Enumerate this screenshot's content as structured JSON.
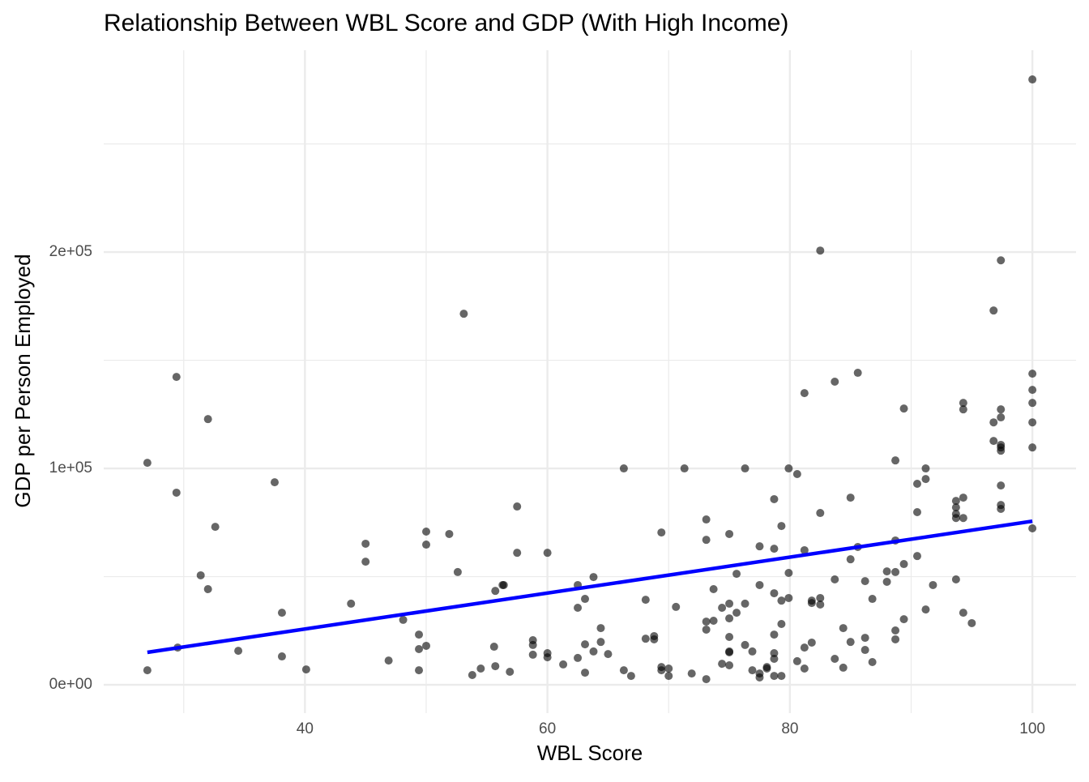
{
  "chart_data": {
    "type": "scatter",
    "title": "Relationship Between WBL Score and GDP (With High Income)",
    "x_label": "WBL Score",
    "y_label": "GDP per Person Employed",
    "xlim": [
      23.4,
      103.6
    ],
    "ylim": [
      -13100,
      293300
    ],
    "xticks": [
      40,
      60,
      80,
      100
    ],
    "yticks": [
      {
        "value": 0,
        "label": "0e+00"
      },
      {
        "value": 100000,
        "label": "1e+05"
      },
      {
        "value": 200000,
        "label": "2e+05"
      }
    ],
    "x_minor_ticks": [
      30,
      50,
      70,
      90
    ],
    "y_minor_ticks": [
      50000,
      150000,
      250000
    ],
    "grid": true,
    "series": [
      {
        "type": "scatter",
        "color": "#000000",
        "alpha": 0.6,
        "x": [
          27.0,
          27.0,
          29.4,
          29.4,
          29.5,
          31.4,
          32.0,
          32.0,
          32.6,
          34.5,
          37.5,
          38.1,
          38.1,
          40.1,
          43.8,
          45.0,
          45.0,
          46.9,
          48.1,
          49.4,
          49.4,
          49.4,
          50.0,
          50.0,
          50.0,
          51.9,
          52.6,
          53.1,
          53.8,
          54.5,
          55.6,
          55.7,
          55.7,
          56.3,
          56.4,
          56.9,
          57.5,
          57.5,
          58.8,
          58.8,
          58.8,
          60.0,
          60.0,
          60.0,
          61.3,
          62.5,
          62.5,
          62.5,
          63.1,
          63.1,
          63.1,
          63.8,
          63.8,
          64.4,
          64.4,
          65.0,
          66.3,
          66.3,
          66.9,
          68.1,
          68.1,
          68.8,
          68.8,
          69.4,
          69.4,
          69.4,
          70.0,
          70.0,
          70.6,
          71.3,
          71.9,
          73.1,
          73.1,
          73.1,
          73.1,
          73.1,
          73.7,
          73.7,
          74.4,
          74.4,
          75.0,
          75.0,
          75.0,
          75.0,
          75.0,
          75.0,
          75.0,
          75.6,
          75.6,
          76.3,
          76.3,
          76.3,
          76.9,
          76.9,
          77.5,
          77.5,
          77.5,
          77.5,
          78.1,
          78.1,
          78.7,
          78.7,
          78.7,
          78.7,
          78.7,
          78.7,
          78.7,
          79.3,
          79.3,
          79.3,
          79.3,
          79.9,
          79.9,
          79.9,
          80.6,
          80.6,
          81.2,
          81.2,
          81.2,
          81.2,
          81.8,
          81.8,
          81.8,
          82.5,
          82.5,
          82.5,
          82.5,
          83.7,
          83.7,
          83.7,
          84.4,
          84.4,
          85.0,
          85.0,
          85.0,
          85.6,
          85.6,
          86.2,
          86.2,
          86.2,
          86.8,
          86.8,
          88.0,
          88.0,
          88.7,
          88.7,
          88.7,
          88.7,
          88.7,
          89.4,
          89.4,
          89.4,
          90.5,
          90.5,
          90.5,
          91.2,
          91.2,
          91.2,
          91.8,
          93.7,
          93.7,
          93.7,
          93.7,
          93.7,
          94.3,
          94.3,
          94.3,
          94.3,
          94.3,
          95.0,
          96.8,
          96.8,
          96.8,
          97.4,
          97.4,
          97.4,
          97.4,
          97.4,
          97.4,
          97.4,
          97.4,
          97.4,
          100,
          100,
          100,
          100,
          100,
          100,
          100
        ],
        "values": [
          6700,
          102600,
          142300,
          88800,
          17200,
          50600,
          44200,
          122800,
          73000,
          15700,
          93600,
          33300,
          13100,
          7100,
          37500,
          65200,
          56900,
          11200,
          30000,
          23200,
          16500,
          6700,
          70800,
          64800,
          18000,
          69700,
          52100,
          171500,
          4500,
          7500,
          17600,
          8600,
          43400,
          46100,
          46100,
          6000,
          82400,
          61000,
          20600,
          18400,
          13900,
          14600,
          12700,
          61000,
          9400,
          46100,
          35600,
          12400,
          39700,
          18700,
          5600,
          49800,
          15400,
          26200,
          19800,
          14200,
          100000,
          6700,
          4100,
          39300,
          21300,
          22500,
          21000,
          70400,
          8200,
          6700,
          7500,
          4100,
          36000,
          100000,
          5200,
          76400,
          67000,
          29200,
          25500,
          2600,
          44200,
          29600,
          35600,
          9700,
          69700,
          37500,
          30700,
          22100,
          15400,
          15000,
          9000,
          51300,
          33300,
          100000,
          37500,
          18400,
          15400,
          6700,
          64000,
          46100,
          5200,
          3400,
          8200,
          7500,
          85800,
          62900,
          42300,
          23200,
          14600,
          12000,
          4100,
          73400,
          38900,
          28100,
          4100,
          100000,
          51700,
          40100,
          97400,
          10900,
          134800,
          62200,
          17200,
          7500,
          38900,
          37800,
          19500,
          200700,
          79400,
          40100,
          37100,
          140100,
          48700,
          12000,
          26200,
          7900,
          86500,
          58000,
          19800,
          144200,
          63700,
          47900,
          21700,
          16100,
          39700,
          10500,
          52400,
          47600,
          103700,
          66700,
          52100,
          25100,
          21000,
          127700,
          55800,
          30300,
          92900,
          79800,
          59500,
          100000,
          95100,
          34800,
          46100,
          85000,
          82000,
          79000,
          77100,
          48700,
          130300,
          127300,
          86500,
          77100,
          33300,
          28500,
          173000,
          121300,
          112700,
          196200,
          127300,
          123600,
          110900,
          109700,
          108200,
          92100,
          83100,
          81300,
          279800,
          143800,
          136300,
          130300,
          121300,
          109700,
          72300
        ]
      },
      {
        "type": "line",
        "color": "#0000ff",
        "x": [
          27.0,
          100
        ],
        "values": [
          15000,
          75600
        ]
      }
    ]
  }
}
